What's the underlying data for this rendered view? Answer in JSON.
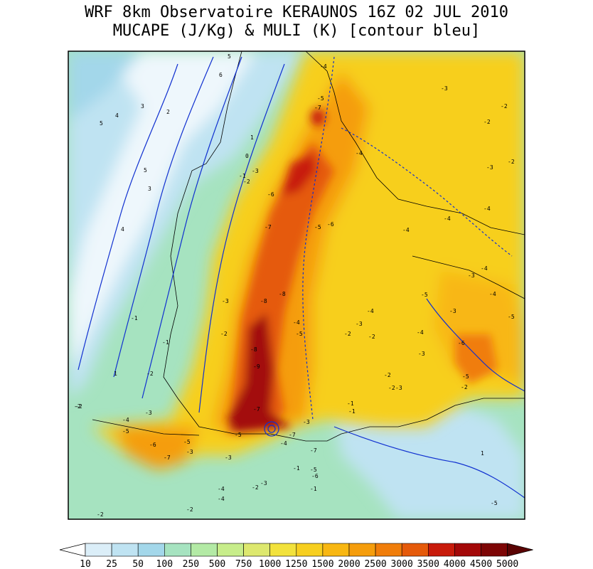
{
  "title_line1": "WRF 8km Observatoire KERAUNOS 16Z 02 JUL 2010",
  "title_line2": "MUCAPE (J/Kg) & MULI (K) [contour bleu]",
  "colorbar": {
    "levels": [
      "10",
      "25",
      "50",
      "100",
      "250",
      "500",
      "750",
      "1000",
      "1250",
      "1500",
      "2000",
      "2500",
      "3000",
      "3500",
      "4000",
      "4500",
      "5000"
    ],
    "colors": [
      "#ffffff",
      "#dbeef8",
      "#bfe3f2",
      "#a3d7ea",
      "#a6e3c0",
      "#b3eaa5",
      "#c7ed8a",
      "#dde86e",
      "#f2e23c",
      "#f7cf1f",
      "#f8b712",
      "#f59d0c",
      "#f07d0a",
      "#e55a0a",
      "#c81b0b",
      "#a30808",
      "#7d0505",
      "#5a0303"
    ]
  },
  "contour_labels": [
    {
      "t": "5"
    },
    {
      "t": "5"
    },
    {
      "t": "4"
    },
    {
      "t": "3"
    },
    {
      "t": "6"
    },
    {
      "t": "5"
    },
    {
      "t": "4"
    },
    {
      "t": "3"
    },
    {
      "t": "2"
    },
    {
      "t": "1"
    },
    {
      "t": "0"
    },
    {
      "t": "-1"
    },
    {
      "t": "-2"
    },
    {
      "t": "-3"
    },
    {
      "t": "-4"
    },
    {
      "t": "-5"
    },
    {
      "t": "-6"
    },
    {
      "t": "-7"
    },
    {
      "t": "-8"
    },
    {
      "t": "-9"
    },
    {
      "t": "-4"
    },
    {
      "t": "-5"
    },
    {
      "t": "-7"
    },
    {
      "t": "-8"
    },
    {
      "t": "-6"
    },
    {
      "t": "-7"
    },
    {
      "t": "-5"
    },
    {
      "t": "-8"
    },
    {
      "t": "-7"
    },
    {
      "t": "-5"
    },
    {
      "t": "-4"
    },
    {
      "t": "-3"
    },
    {
      "t": "-2"
    },
    {
      "t": "-2"
    },
    {
      "t": "-3"
    },
    {
      "t": "-2"
    },
    {
      "t": "-4"
    },
    {
      "t": "-4"
    },
    {
      "t": "-3"
    },
    {
      "t": "-4"
    },
    {
      "t": "-4"
    },
    {
      "t": "-5"
    },
    {
      "t": "-4"
    },
    {
      "t": "-3"
    },
    {
      "t": "-6"
    },
    {
      "t": "-5"
    },
    {
      "t": "-4"
    },
    {
      "t": "-2"
    },
    {
      "t": "-3"
    },
    {
      "t": "-2"
    },
    {
      "t": "-1"
    },
    {
      "t": "-2"
    },
    {
      "t": "-3"
    },
    {
      "t": "-1"
    },
    {
      "t": "-5"
    },
    {
      "t": "-2"
    },
    {
      "t": "-7"
    },
    {
      "t": "-6"
    },
    {
      "t": "-5"
    },
    {
      "t": "-4"
    },
    {
      "t": "-3"
    },
    {
      "t": "-2"
    },
    {
      "t": "1"
    },
    {
      "t": "-2"
    },
    {
      "t": "-3"
    },
    {
      "t": "-5"
    },
    {
      "t": "-4"
    },
    {
      "t": "-1"
    },
    {
      "t": "-2"
    },
    {
      "t": "-3"
    },
    {
      "t": "-5"
    },
    {
      "t": "-6"
    },
    {
      "t": "-7"
    },
    {
      "t": "-4"
    },
    {
      "t": "-3"
    },
    {
      "t": "-1"
    },
    {
      "t": "-2"
    },
    {
      "t": "-2"
    },
    {
      "t": "1"
    },
    {
      "t": "-2"
    },
    {
      "t": "-3"
    },
    {
      "t": "-4"
    },
    {
      "t": "-2"
    },
    {
      "t": "-1"
    },
    {
      "t": "-2"
    },
    {
      "t": "-3"
    },
    {
      "t": "-1"
    },
    {
      "t": "-3"
    },
    {
      "t": "-4"
    },
    {
      "t": "-5"
    }
  ]
}
